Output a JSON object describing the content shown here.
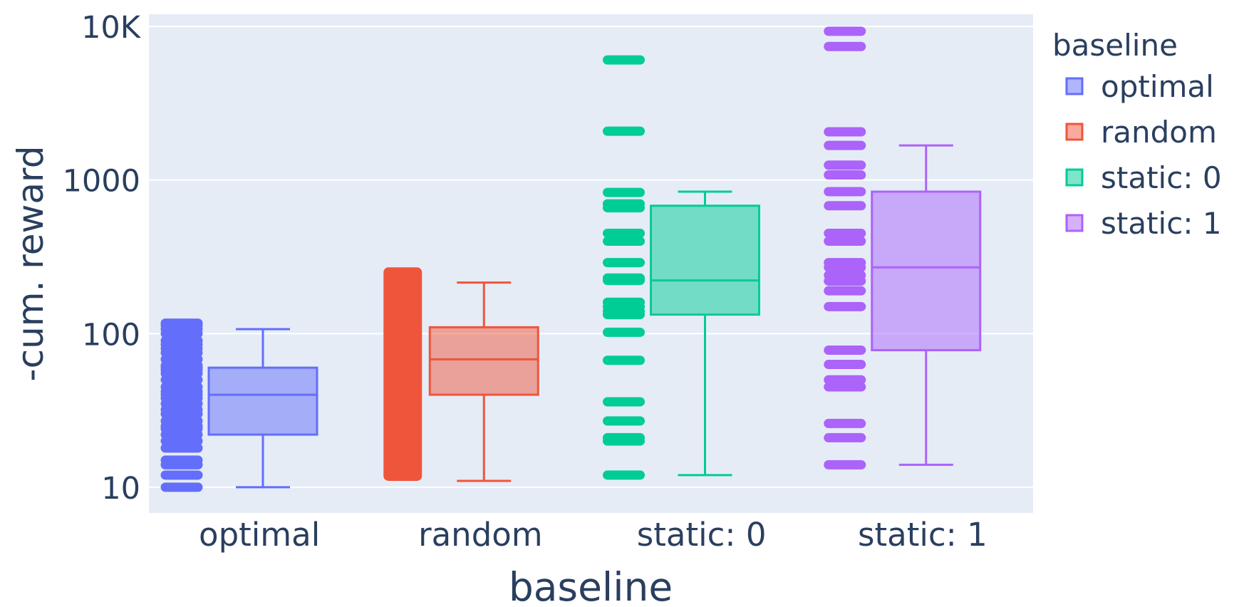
{
  "chart_data": {
    "type": "box",
    "title": "",
    "xlabel": "baseline",
    "ylabel": "-cum. reward",
    "y_scale": "log",
    "ylim": [
      6.8,
      12000
    ],
    "y_ticks": [
      10,
      100,
      1000,
      10000
    ],
    "y_tick_labels": [
      "10",
      "100",
      "1000",
      "10K"
    ],
    "categories": [
      "optimal",
      "random",
      "static: 0",
      "static: 1"
    ],
    "legend": {
      "title": "baseline",
      "position": "right",
      "entries": [
        "optimal",
        "random",
        "static: 0",
        "static: 1"
      ]
    },
    "grid": true,
    "series": [
      {
        "name": "optimal",
        "color": "#636efa",
        "box": {
          "min": 10,
          "q1": 22,
          "median": 40,
          "q3": 60,
          "max": 107
        },
        "points": [
          10,
          12,
          14,
          15,
          18,
          20,
          22,
          24,
          25,
          27,
          30,
          32,
          35,
          38,
          40,
          42,
          45,
          50,
          55,
          58,
          60,
          62,
          68,
          75,
          80,
          85,
          90,
          100,
          107,
          113,
          117
        ]
      },
      {
        "name": "random",
        "color": "#ef553b",
        "box": {
          "min": 11,
          "q1": 40,
          "median": 68,
          "q3": 110,
          "max": 215
        },
        "points_range": [
          11,
          270
        ]
      },
      {
        "name": "static: 0",
        "color": "#00cc96",
        "box": {
          "min": 12,
          "q1": 133,
          "median": 222,
          "q3": 680,
          "max": 840
        },
        "points": [
          12,
          20,
          21,
          27,
          36,
          67,
          102,
          133,
          140,
          150,
          160,
          222,
          230,
          290,
          400,
          450,
          660,
          700,
          830,
          2080,
          6050
        ]
      },
      {
        "name": "static: 1",
        "color": "#ab63fa",
        "box": {
          "min": 14,
          "q1": 78,
          "median": 270,
          "q3": 840,
          "max": 1680
        },
        "points": [
          14,
          21,
          26,
          45,
          50,
          63,
          78,
          150,
          190,
          220,
          240,
          270,
          290,
          400,
          450,
          680,
          840,
          1080,
          1250,
          1680,
          2060,
          7400,
          9300
        ]
      }
    ]
  }
}
